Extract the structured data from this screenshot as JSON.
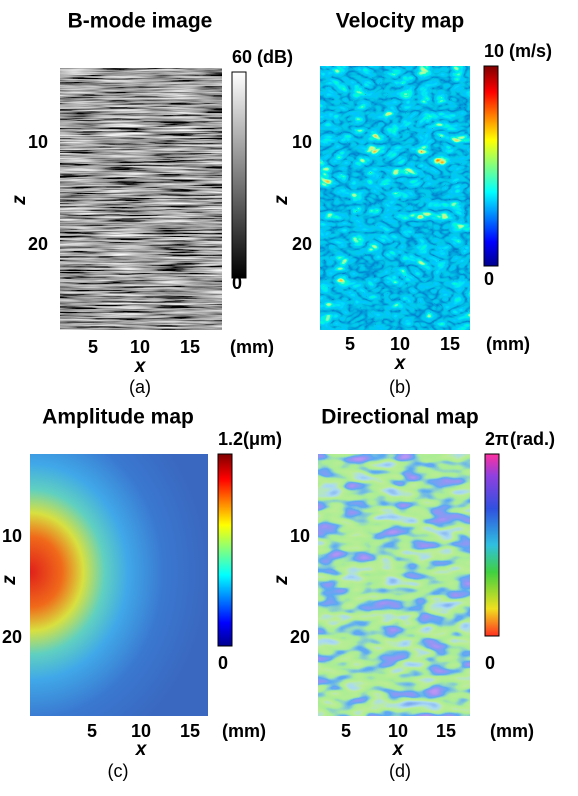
{
  "panels": [
    {
      "title": "B-mode image",
      "colorbar_max": "60",
      "colorbar_unit": "(dB)",
      "colorbar_min": "0",
      "z_ticks": [
        "10",
        "20"
      ],
      "z_label": "z",
      "x_ticks": [
        "5",
        "10",
        "15"
      ],
      "x_unit": "(mm)",
      "x_label": "x",
      "caption": "(a)"
    },
    {
      "title": "Velocity map",
      "colorbar_max": "10",
      "colorbar_unit": "(m/s)",
      "colorbar_min": "0",
      "z_ticks": [
        "10",
        "20"
      ],
      "z_label": "z",
      "x_ticks": [
        "5",
        "10",
        "15"
      ],
      "x_unit": "(mm)",
      "x_label": "x",
      "caption": "(b)"
    },
    {
      "title": "Amplitude map",
      "colorbar_max": "1.2",
      "colorbar_unit": "(μm)",
      "colorbar_min": "0",
      "z_ticks": [
        "10",
        "20"
      ],
      "z_label": "z",
      "x_ticks": [
        "5",
        "10",
        "15"
      ],
      "x_unit": "(mm)",
      "x_label": "x",
      "caption": "(c)"
    },
    {
      "title": "Directional map",
      "colorbar_max": "2π",
      "colorbar_unit": "(rad.)",
      "colorbar_min": "0",
      "z_ticks": [
        "10",
        "20"
      ],
      "z_label": "z",
      "x_ticks": [
        "5",
        "10",
        "15"
      ],
      "x_unit": "(mm)",
      "x_label": "x",
      "caption": "(d)"
    }
  ]
}
